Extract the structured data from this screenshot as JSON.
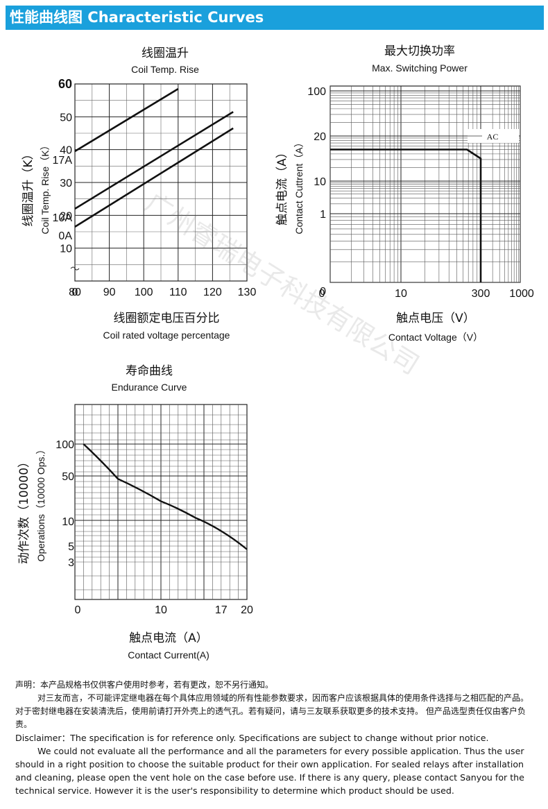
{
  "header": {
    "title": "性能曲线图 Characteristic  Curves"
  },
  "watermark": "广州睿瑞电子科技有限公司",
  "chart_data": [
    {
      "type": "line",
      "title_cn": "线圈温升",
      "title": "Coil Temp. Rise",
      "ylabel_cn": "线圈温升（K）",
      "ylabel": "Coil Temp. Rise（K）",
      "xlabel_cn": "线圈额定电压百分比",
      "xlabel": "Coil rated voltage percentage",
      "xlim": [
        80,
        130
      ],
      "ylim": [
        0,
        60
      ],
      "x_ticks": [
        "0",
        "80",
        "90",
        "100",
        "110",
        "120",
        "130"
      ],
      "y_ticks": [
        "10",
        "20",
        "30",
        "40",
        "50",
        "60"
      ],
      "grid": true,
      "series": [
        {
          "name": "17A",
          "points": [
            [
              80,
              39.5
            ],
            [
              110,
              58.5
            ]
          ]
        },
        {
          "name": "10A",
          "points": [
            [
              80,
              22
            ],
            [
              126,
              51.5
            ]
          ]
        },
        {
          "name": "0A",
          "points": [
            [
              80,
              16.5
            ],
            [
              126,
              46.5
            ]
          ]
        }
      ]
    },
    {
      "type": "line",
      "title_cn": "最大切换功率",
      "title": "Max. Switching Power",
      "ylabel_cn": "触点电流（A）",
      "ylabel": "Contact Cuttrent（A）",
      "xlabel_cn": "触点电压（V）",
      "xlabel": "Contact Voltage（V）",
      "x_ticks": [
        "0",
        "10",
        "300",
        "1000"
      ],
      "y_ticks": [
        "0",
        "1",
        "10",
        "20",
        "100"
      ],
      "grid": true,
      "series": [
        {
          "name": "AC",
          "points": [
            [
              0,
              17
            ],
            [
              250,
              17
            ],
            [
              300,
              15
            ],
            [
              300,
              0
            ]
          ]
        }
      ]
    },
    {
      "type": "line",
      "title_cn": "寿命曲线",
      "title": "Endurance Curve",
      "ylabel_cn": "动作次数（10000）",
      "ylabel": "Operations（10000 Ops.）",
      "xlabel_cn": "触点电流（A）",
      "xlabel": "Contact Current(A)",
      "x_ticks": [
        "0",
        "10",
        "17",
        "20"
      ],
      "y_ticks": [
        "100",
        "50",
        "10",
        "5",
        "3"
      ],
      "grid": true,
      "series": [
        {
          "name": "",
          "points": [
            [
              1,
              100
            ],
            [
              5,
              45
            ],
            [
              10,
              20
            ],
            [
              14,
              11
            ],
            [
              17,
              7.5
            ],
            [
              20,
              4.5
            ]
          ]
        }
      ]
    }
  ],
  "disclaimer": {
    "cn_line1": "声明：本产品规格书仅供客户使用时参考，若有更改，恕不另行通知。",
    "cn_line2": "对三友而言，不可能评定继电器在每个具体应用领域的所有性能参数要求，因而客户应该根据具体的使用条件选择与之相匹配的产品。对于密封继电器在安装清洗后，使用前请打开外壳上的透气孔。若有疑问，请与三友联系获取更多的技术支持。 但产品选型责任仅由客户负责。",
    "en_line1": "Disclaimer：The specification is for reference only. Specifications are subject to change without prior notice.",
    "en_line2": "We could not evaluate all the performance and all the parameters for every possible application. Thus the user should in a right position to choose the suitable product for their own application. For sealed relays after installation and cleaning, please open the vent hole on the case before use. If there is any query, please contact Sanyou for the technical service. However it is the user's responsibility to determine which product should be used."
  }
}
